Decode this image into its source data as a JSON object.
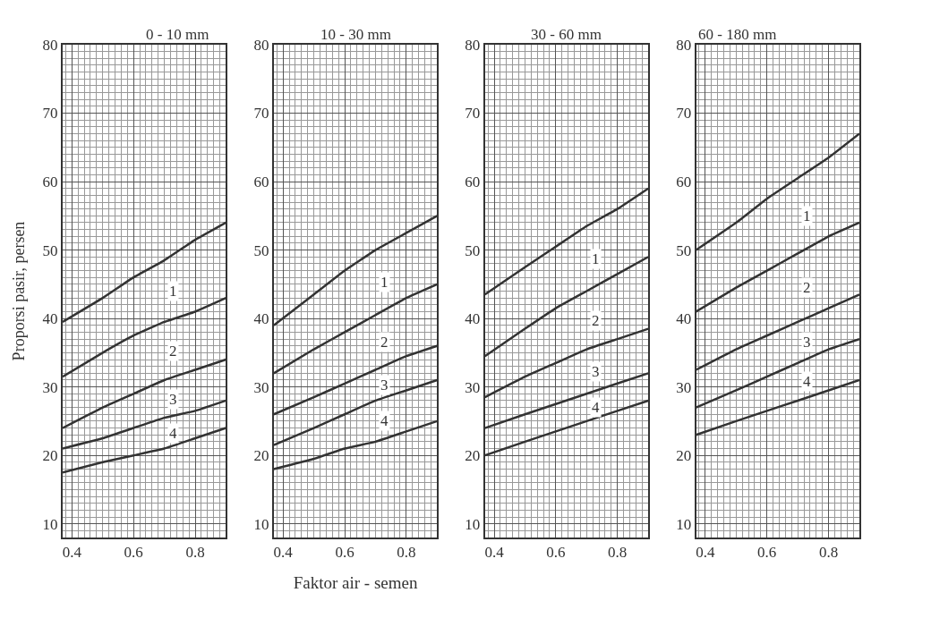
{
  "chart_data": [
    {
      "type": "line",
      "title": "0 - 10 mm",
      "ylabel": "Proporsi pasir, persen",
      "x": [
        0.37,
        0.5,
        0.6,
        0.7,
        0.8,
        0.9
      ],
      "xlim": [
        0.37,
        0.9
      ],
      "xticks": [
        0.4,
        0.6,
        0.8
      ],
      "ylim": [
        8,
        80
      ],
      "yticks": [
        10,
        20,
        30,
        40,
        50,
        60,
        70,
        80
      ],
      "grid": true,
      "marker": "none",
      "line_style": "solid",
      "series": [
        {
          "color": "#333333",
          "values": [
            39.5,
            43,
            46,
            48.5,
            51.5,
            54
          ]
        },
        {
          "color": "#333333",
          "values": [
            31.5,
            35,
            37.5,
            39.5,
            41,
            43
          ]
        },
        {
          "color": "#333333",
          "values": [
            24,
            27,
            29,
            31,
            32.5,
            34
          ]
        },
        {
          "color": "#333333",
          "values": [
            21,
            22.5,
            24,
            25.5,
            26.5,
            28
          ]
        },
        {
          "color": "#333333",
          "values": [
            17.5,
            19,
            20,
            21,
            22.5,
            24
          ]
        }
      ],
      "annotations": [
        "1",
        "2",
        "3",
        "4"
      ]
    },
    {
      "type": "line",
      "title": "10 - 30 mm",
      "xlabel": "Faktor air - semen",
      "x": [
        0.37,
        0.5,
        0.6,
        0.7,
        0.8,
        0.9
      ],
      "xlim": [
        0.37,
        0.9
      ],
      "xticks": [
        0.4,
        0.6,
        0.8
      ],
      "ylim": [
        8,
        80
      ],
      "yticks": [
        10,
        20,
        30,
        40,
        50,
        60,
        70,
        80
      ],
      "grid": true,
      "marker": "none",
      "line_style": "solid",
      "series": [
        {
          "color": "#333333",
          "values": [
            39,
            43.5,
            47,
            50,
            52.5,
            55
          ]
        },
        {
          "color": "#333333",
          "values": [
            32,
            35.5,
            38,
            40.5,
            43,
            45
          ]
        },
        {
          "color": "#333333",
          "values": [
            26,
            28.5,
            30.5,
            32.5,
            34.5,
            36
          ]
        },
        {
          "color": "#333333",
          "values": [
            21.5,
            24,
            26,
            28,
            29.5,
            31
          ]
        },
        {
          "color": "#333333",
          "values": [
            18,
            19.5,
            21,
            22,
            23.5,
            25
          ]
        }
      ],
      "annotations": [
        "1",
        "2",
        "3",
        "4"
      ]
    },
    {
      "type": "line",
      "title": "30 - 60 mm",
      "x": [
        0.37,
        0.5,
        0.6,
        0.7,
        0.8,
        0.9
      ],
      "xlim": [
        0.37,
        0.9
      ],
      "xticks": [
        0.4,
        0.6,
        0.8
      ],
      "ylim": [
        8,
        80
      ],
      "yticks": [
        10,
        20,
        30,
        40,
        50,
        60,
        70,
        80
      ],
      "grid": true,
      "marker": "none",
      "line_style": "solid",
      "series": [
        {
          "color": "#333333",
          "values": [
            43.5,
            47.5,
            50.5,
            53.5,
            56,
            59
          ]
        },
        {
          "color": "#333333",
          "values": [
            34.5,
            38.5,
            41.5,
            44,
            46.5,
            49
          ]
        },
        {
          "color": "#333333",
          "values": [
            28.5,
            31.5,
            33.5,
            35.5,
            37,
            38.5
          ]
        },
        {
          "color": "#333333",
          "values": [
            24,
            26,
            27.5,
            29,
            30.5,
            32
          ]
        },
        {
          "color": "#333333",
          "values": [
            20,
            22,
            23.5,
            25,
            26.5,
            28
          ]
        }
      ],
      "annotations": [
        "1",
        "2",
        "3",
        "4"
      ]
    },
    {
      "type": "line",
      "title": "60 - 180 mm",
      "x": [
        0.37,
        0.5,
        0.6,
        0.7,
        0.8,
        0.9
      ],
      "xlim": [
        0.37,
        0.9
      ],
      "xticks": [
        0.4,
        0.6,
        0.8
      ],
      "ylim": [
        8,
        80
      ],
      "yticks": [
        10,
        20,
        30,
        40,
        50,
        60,
        70,
        80
      ],
      "grid": true,
      "marker": "none",
      "line_style": "solid",
      "series": [
        {
          "color": "#333333",
          "values": [
            50,
            54,
            57.5,
            60.5,
            63.5,
            67
          ]
        },
        {
          "color": "#333333",
          "values": [
            41,
            44.5,
            47,
            49.5,
            52,
            54
          ]
        },
        {
          "color": "#333333",
          "values": [
            32.5,
            35.5,
            37.5,
            39.5,
            41.5,
            43.5
          ]
        },
        {
          "color": "#333333",
          "values": [
            27,
            29.5,
            31.5,
            33.5,
            35.5,
            37
          ]
        },
        {
          "color": "#333333",
          "values": [
            23,
            25,
            26.5,
            28,
            29.5,
            31
          ]
        }
      ],
      "annotations": [
        "1",
        "2",
        "3",
        "4"
      ]
    }
  ]
}
